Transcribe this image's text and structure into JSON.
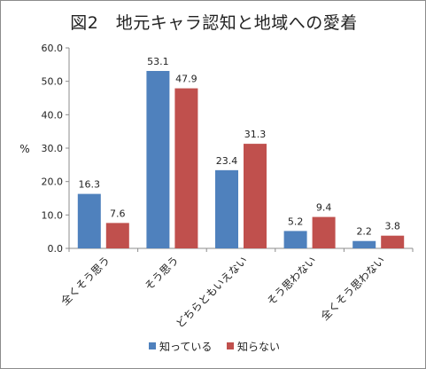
{
  "chart_data": {
    "type": "bar",
    "title": "図2　地元キャラ認知と地域への愛着",
    "ylabel": "%",
    "xlabel": "",
    "ylim": [
      0,
      60
    ],
    "ytick_labels": [
      "0.0",
      "10.0",
      "20.0",
      "30.0",
      "40.0",
      "50.0",
      "60.0"
    ],
    "categories": [
      "全くそう思う",
      "そう思う",
      "どちらともいえない",
      "そう思わない",
      "全くそう思わない"
    ],
    "series": [
      {
        "name": "知っている",
        "color": "#4f81bd",
        "values": [
          16.3,
          53.1,
          23.4,
          5.2,
          2.2
        ]
      },
      {
        "name": "知らない",
        "color": "#c0504d",
        "values": [
          7.6,
          47.9,
          31.3,
          9.4,
          3.8
        ]
      }
    ],
    "grid": false,
    "legend": "bottom"
  }
}
